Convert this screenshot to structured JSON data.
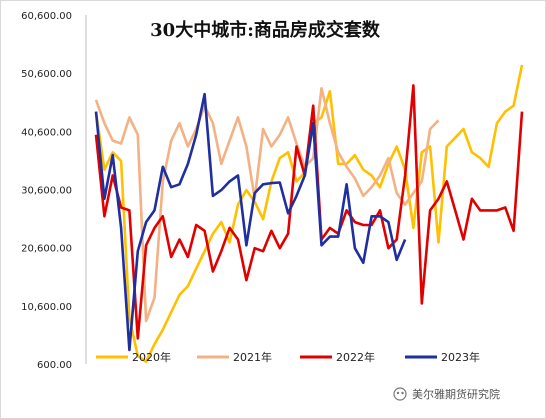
{
  "chart_data": {
    "type": "line",
    "title": "30大中城市:商品房成交套数",
    "xlabel": "",
    "ylabel": "",
    "ylim": [
      600,
      60600
    ],
    "yticks": [
      600,
      10600,
      20600,
      30600,
      40600,
      50600,
      60600
    ],
    "ytick_labels": [
      "600.00",
      "10,600.00",
      "20,600.00",
      "30,600.00",
      "40,600.00",
      "50,600.00",
      "60,600.00"
    ],
    "grid": false,
    "legend_position": "bottom",
    "x_count": 52,
    "series": [
      {
        "name": "2020年",
        "color": "#FFC000",
        "values": [
          44000,
          34000,
          37000,
          35500,
          8500,
          2000,
          1000,
          4000,
          6500,
          9500,
          12500,
          14000,
          17000,
          20000,
          23000,
          25000,
          21500,
          28000,
          30500,
          28500,
          25500,
          32000,
          36000,
          37000,
          32000,
          33500,
          42000,
          43000,
          47500,
          35000,
          35000,
          36500,
          34000,
          33000,
          31000,
          35000,
          38000,
          34000,
          24000,
          37000,
          38000,
          21500,
          38000,
          39500,
          41000,
          37000,
          36000,
          34500,
          42000,
          44000,
          45000,
          52000
        ]
      },
      {
        "name": "2021年",
        "color": "#F4B183",
        "values": [
          46000,
          42000,
          39000,
          38500,
          43000,
          40000,
          8000,
          12000,
          32000,
          39000,
          42000,
          38000,
          41000,
          45000,
          42000,
          35000,
          39000,
          43000,
          38000,
          29000,
          41000,
          38000,
          40000,
          43000,
          38500,
          34500,
          36000,
          48000,
          42000,
          37000,
          34500,
          32500,
          29500,
          31000,
          33000,
          36000,
          30000,
          28000,
          30000,
          32000,
          41000,
          42500
        ]
      },
      {
        "name": "2022年",
        "color": "#E00000",
        "values": [
          40000,
          26000,
          33000,
          27500,
          27000,
          5000,
          21000,
          24000,
          26000,
          19000,
          22000,
          19000,
          24500,
          23500,
          16500,
          20000,
          24000,
          22000,
          15000,
          20500,
          20000,
          23500,
          20500,
          23000,
          38000,
          33000,
          45000,
          22000,
          24000,
          23000,
          27000,
          25000,
          24500,
          24500,
          27000,
          20500,
          22000,
          33000,
          48500,
          11000,
          27000,
          29000,
          32000,
          27000,
          22000,
          29000,
          27000,
          27000,
          27000,
          27500,
          23500,
          44000
        ]
      },
      {
        "name": "2023年",
        "color": "#1F2FA0",
        "values": [
          44000,
          29000,
          36500,
          24000,
          3000,
          20000,
          25000,
          27000,
          34500,
          31000,
          31500,
          35000,
          40000,
          47000,
          29500,
          30500,
          32000,
          33000,
          21000,
          30000,
          31500,
          31700,
          31800,
          26500,
          29500,
          33000,
          42000,
          21000,
          22500,
          22500,
          31500,
          20500,
          18000,
          26000,
          26000,
          25000,
          18500,
          22000
        ]
      }
    ]
  },
  "watermark": "美尔雅期货研究院"
}
